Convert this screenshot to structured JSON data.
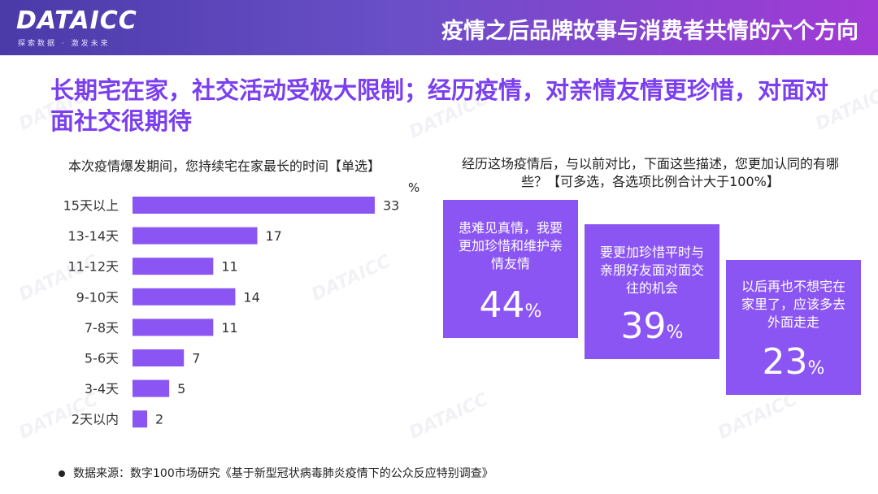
{
  "header": {
    "logo": "DATAICC",
    "logo_sub": "探索数据 · 激发未来",
    "title": "疫情之后品牌故事与消费者共情的六个方向"
  },
  "headline": "长期宅在家，社交活动受极大限制；经历疫情，对亲情友情更珍惜，对面对面社交很期待",
  "left_chart": {
    "question": "本次疫情爆发期间，您持续宅在家最长的时间【单选】",
    "unit": "%"
  },
  "right_panel": {
    "question": "经历这场疫情后，与以前对比，下面这些描述，您更加认同的有哪些？【可多选，各选项比例合计大于100%】",
    "items": [
      {
        "text": "患难见真情，我要更加珍惜和维护亲情友情",
        "value": "44",
        "unit": "%"
      },
      {
        "text": "要更加珍惜平时与亲朋好友面对面交往的机会",
        "value": "39",
        "unit": "%"
      },
      {
        "text": "以后再也不想宅在家里了，应该多去外面走走",
        "value": "23",
        "unit": "%"
      }
    ]
  },
  "chart_data": {
    "type": "bar",
    "orientation": "horizontal",
    "categories": [
      "15天以上",
      "13-14天",
      "11-12天",
      "9-10天",
      "7-8天",
      "5-6天",
      "3-4天",
      "2天以内"
    ],
    "values": [
      33,
      17,
      11,
      14,
      11,
      7,
      5,
      2
    ],
    "ylabel": "%",
    "color": "#8b55f3"
  },
  "footer": {
    "source": "数据来源：数字100市场研究《基于新型冠状病毒肺炎疫情下的公众反应特别调查》"
  }
}
